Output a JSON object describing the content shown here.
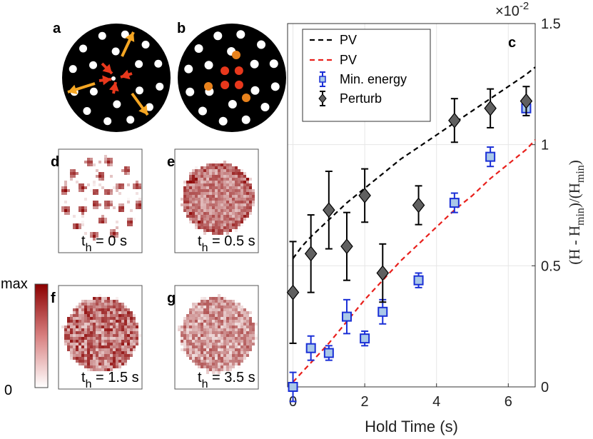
{
  "panels": {
    "a": "a",
    "b": "b",
    "c": "c",
    "d": "d",
    "e": "e",
    "f": "f",
    "g": "g"
  },
  "heatmaps": [
    {
      "id": "d",
      "t_sub": "h",
      "t_rest": " = 0 s",
      "pattern": "vortices"
    },
    {
      "id": "e",
      "t_sub": "h",
      "t_rest": " = 0.5 s",
      "pattern": "ring"
    },
    {
      "id": "f",
      "t_sub": "h",
      "t_rest": " = 1.5 s",
      "pattern": "disk"
    },
    {
      "id": "g",
      "t_sub": "h",
      "t_rest": " = 3.5 s",
      "pattern": "disk_faint"
    }
  ],
  "colorbar": {
    "max_label": "max",
    "min_label": "0",
    "color_low": "#ffffff",
    "color_high": "#8b0000"
  },
  "disk_a": {
    "background": "#000000",
    "dot_color": "#ffffff",
    "arrow_outer_color": "#f5a623",
    "arrow_inner_color": "#e8381c"
  },
  "disk_b": {
    "background": "#000000",
    "dot_color": "#ffffff",
    "red_color": "#e8381c",
    "orange_color": "#e8821c"
  },
  "chart_data": {
    "type": "scatter",
    "xlabel": "Hold Time (s)",
    "ylabel_text": "(H - H",
    "ylabel_sub": "min",
    "ylabel_mid": ")/(H",
    "ylabel_end": ")",
    "exponent": "×10",
    "exponent_power": "-2",
    "xlim": [
      -0.15,
      6.75
    ],
    "ylim": [
      0,
      1.5
    ],
    "x_ticks": [
      "0",
      "2",
      "4",
      "6"
    ],
    "x_tick_values": [
      0,
      2,
      4,
      6
    ],
    "y_ticks": [
      "0",
      "0.5",
      "1",
      "1.5"
    ],
    "y_tick_values": [
      0,
      0.5,
      1,
      1.5
    ],
    "grid": true,
    "legend_position": "top-left",
    "legend": [
      "PV",
      "PV",
      "Min. energy",
      "Perturb"
    ],
    "curves": [
      {
        "label": "PV",
        "color": "#000000",
        "style": "dashed",
        "x": [
          0,
          0.25,
          0.5,
          1,
          1.5,
          2,
          2.5,
          3,
          3.5,
          4,
          4.5,
          5,
          5.5,
          6,
          6.5,
          6.75
        ],
        "y": [
          0.53,
          0.58,
          0.62,
          0.69,
          0.76,
          0.82,
          0.88,
          0.94,
          0.99,
          1.04,
          1.09,
          1.14,
          1.19,
          1.24,
          1.29,
          1.32
        ]
      },
      {
        "label": "PV",
        "color": "#e8201c",
        "style": "dashed",
        "x": [
          0,
          0.25,
          0.5,
          1,
          1.5,
          2,
          2.5,
          3,
          3.5,
          4,
          4.5,
          5,
          5.5,
          6,
          6.5,
          6.75
        ],
        "y": [
          0.02,
          0.06,
          0.1,
          0.18,
          0.27,
          0.36,
          0.44,
          0.52,
          0.59,
          0.66,
          0.73,
          0.79,
          0.86,
          0.92,
          0.98,
          1.02
        ]
      }
    ],
    "series": [
      {
        "name": "Min. energy",
        "marker": "square",
        "color": "#1a2fd6",
        "fill": "#a9c8e8",
        "x": [
          0,
          0.5,
          1,
          1.5,
          2,
          2.5,
          3.5,
          4.5,
          5.5,
          6.5
        ],
        "y": [
          0.0,
          0.16,
          0.14,
          0.29,
          0.2,
          0.31,
          0.44,
          0.76,
          0.95,
          1.15
        ],
        "err": [
          0.06,
          0.05,
          0.03,
          0.07,
          0.03,
          0.05,
          0.03,
          0.04,
          0.04,
          0.03
        ]
      },
      {
        "name": "Perturb",
        "marker": "diamond",
        "color": "#000000",
        "fill": "#606060",
        "x": [
          0,
          0.5,
          1,
          1.5,
          2,
          2.5,
          3.5,
          4.5,
          5.5,
          6.5
        ],
        "y": [
          0.39,
          0.55,
          0.73,
          0.58,
          0.79,
          0.47,
          0.75,
          1.1,
          1.15,
          1.18
        ],
        "err": [
          0.21,
          0.16,
          0.16,
          0.14,
          0.11,
          0.12,
          0.08,
          0.09,
          0.08,
          0.06
        ]
      }
    ]
  }
}
